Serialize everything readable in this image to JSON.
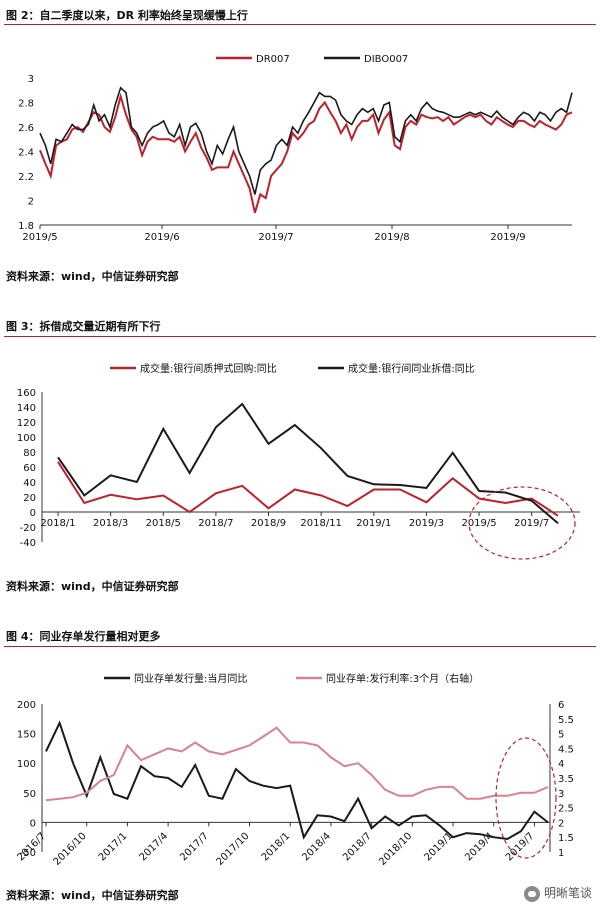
{
  "figures": [
    {
      "title": "图 2：自二季度以来，DR 利率始终呈现缓慢上行",
      "source": "资料来源：wind，中信证券研究部"
    },
    {
      "title": "图 3：拆借成交量近期有所下行",
      "source": "资料来源：wind，中信证券研究部"
    },
    {
      "title": "图 4：同业存单发行量相对更多",
      "source": "资料来源：wind，中信证券研究部"
    }
  ],
  "watermark": "明晰笔谈",
  "colors": {
    "red": "#c0202a",
    "black": "#1a1a1a",
    "pink": "#d9828f",
    "accent_rule": "#b3202a"
  },
  "chart_data": [
    {
      "type": "line",
      "title": "图 2：自二季度以来，DR 利率始终呈现缓慢上行",
      "x_ticks": [
        "2019/5",
        "2019/6",
        "2019/7",
        "2019/8",
        "2019/9"
      ],
      "ylim": [
        1.8,
        3.0
      ],
      "y_ticks": [
        "1.8",
        "2",
        "2.2",
        "2.4",
        "2.6",
        "2.8",
        "3"
      ],
      "legend_position": "top",
      "series": [
        {
          "name": "DR007",
          "color": "#c0202a",
          "values": [
            2.41,
            2.3,
            2.2,
            2.45,
            2.48,
            2.5,
            2.58,
            2.6,
            2.56,
            2.64,
            2.72,
            2.7,
            2.6,
            2.56,
            2.68,
            2.85,
            2.7,
            2.58,
            2.52,
            2.37,
            2.48,
            2.52,
            2.5,
            2.5,
            2.5,
            2.48,
            2.52,
            2.4,
            2.48,
            2.55,
            2.43,
            2.35,
            2.25,
            2.27,
            2.27,
            2.27,
            2.4,
            2.3,
            2.2,
            2.1,
            1.9,
            2.05,
            2.02,
            2.2,
            2.25,
            2.3,
            2.4,
            2.55,
            2.5,
            2.55,
            2.62,
            2.65,
            2.75,
            2.8,
            2.72,
            2.65,
            2.55,
            2.62,
            2.5,
            2.6,
            2.65,
            2.65,
            2.7,
            2.55,
            2.66,
            2.72,
            2.45,
            2.42,
            2.6,
            2.65,
            2.62,
            2.7,
            2.68,
            2.67,
            2.68,
            2.65,
            2.68,
            2.62,
            2.65,
            2.68,
            2.7,
            2.68,
            2.7,
            2.65,
            2.62,
            2.68,
            2.65,
            2.62,
            2.6,
            2.65,
            2.65,
            2.62,
            2.6,
            2.65,
            2.62,
            2.6,
            2.58,
            2.62,
            2.7,
            2.72
          ]
        },
        {
          "name": "DIBO007",
          "color": "#1a1a1a",
          "values": [
            2.55,
            2.45,
            2.3,
            2.5,
            2.48,
            2.55,
            2.62,
            2.58,
            2.58,
            2.62,
            2.78,
            2.65,
            2.7,
            2.6,
            2.78,
            2.92,
            2.88,
            2.6,
            2.55,
            2.45,
            2.55,
            2.6,
            2.62,
            2.65,
            2.55,
            2.52,
            2.62,
            2.45,
            2.6,
            2.63,
            2.55,
            2.4,
            2.3,
            2.45,
            2.38,
            2.5,
            2.6,
            2.4,
            2.3,
            2.2,
            2.05,
            2.25,
            2.3,
            2.33,
            2.45,
            2.5,
            2.45,
            2.6,
            2.55,
            2.65,
            2.72,
            2.8,
            2.88,
            2.85,
            2.85,
            2.82,
            2.7,
            2.65,
            2.62,
            2.7,
            2.75,
            2.72,
            2.75,
            2.65,
            2.78,
            2.8,
            2.52,
            2.48,
            2.65,
            2.7,
            2.65,
            2.75,
            2.8,
            2.75,
            2.73,
            2.72,
            2.7,
            2.68,
            2.68,
            2.7,
            2.72,
            2.7,
            2.72,
            2.7,
            2.68,
            2.73,
            2.68,
            2.65,
            2.62,
            2.68,
            2.72,
            2.7,
            2.65,
            2.72,
            2.7,
            2.65,
            2.72,
            2.75,
            2.72,
            2.88
          ]
        }
      ]
    },
    {
      "type": "line",
      "title": "图 3：拆借成交量近期有所下行",
      "x_ticks": [
        "2018/1",
        "2018/3",
        "2018/5",
        "2018/7",
        "2018/9",
        "2018/11",
        "2019/1",
        "2019/3",
        "2019/5",
        "2019/7"
      ],
      "x_months": [
        "2018/1",
        "2018/2",
        "2018/3",
        "2018/4",
        "2018/5",
        "2018/6",
        "2018/7",
        "2018/8",
        "2018/9",
        "2018/10",
        "2018/11",
        "2018/12",
        "2019/1",
        "2019/2",
        "2019/3",
        "2019/4",
        "2019/5",
        "2019/6",
        "2019/7",
        "2019/8"
      ],
      "ylim": [
        -40,
        160
      ],
      "y_ticks": [
        "-40",
        "-20",
        "0",
        "20",
        "40",
        "60",
        "80",
        "100",
        "120",
        "140",
        "160"
      ],
      "legend_position": "top",
      "annotation": "dashed red ellipse around latest points",
      "series": [
        {
          "name": "成交量:银行间质押式回购:同比",
          "color": "#c0202a",
          "values": [
            67,
            12,
            23,
            17,
            22,
            0,
            25,
            35,
            5,
            30,
            22,
            8,
            30,
            30,
            13,
            45,
            18,
            12,
            18,
            -5
          ]
        },
        {
          "name": "成交量:银行间同业拆借:同比",
          "color": "#1a1a1a",
          "values": [
            73,
            22,
            49,
            40,
            111,
            52,
            113,
            144,
            91,
            116,
            85,
            48,
            37,
            36,
            32,
            79,
            28,
            26,
            15,
            -15
          ]
        }
      ]
    },
    {
      "type": "line",
      "title": "图 4：同业存单发行量相对更多",
      "x_ticks": [
        "2016/7",
        "2016/10",
        "2017/1",
        "2017/4",
        "2017/7",
        "2017/10",
        "2018/1",
        "2018/4",
        "2018/7",
        "2018/10",
        "2019/1",
        "2019/4",
        "2019/7"
      ],
      "x_months": [
        "2016/7",
        "2016/8",
        "2016/9",
        "2016/10",
        "2016/11",
        "2016/12",
        "2017/1",
        "2017/2",
        "2017/3",
        "2017/4",
        "2017/5",
        "2017/6",
        "2017/7",
        "2017/8",
        "2017/9",
        "2017/10",
        "2017/11",
        "2017/12",
        "2018/1",
        "2018/2",
        "2018/3",
        "2018/4",
        "2018/5",
        "2018/6",
        "2018/7",
        "2018/8",
        "2018/9",
        "2018/10",
        "2018/11",
        "2018/12",
        "2019/1",
        "2019/2",
        "2019/3",
        "2019/4",
        "2019/5",
        "2019/6",
        "2019/7",
        "2019/8"
      ],
      "ylim": [
        -50,
        200
      ],
      "y_ticks": [
        "-50",
        "0",
        "50",
        "100",
        "150",
        "200"
      ],
      "y2lim": [
        1.0,
        6.0
      ],
      "y2_ticks": [
        "1",
        "1.5",
        "2",
        "2.5",
        "3",
        "3.5",
        "4",
        "4.5",
        "5",
        "5.5",
        "6"
      ],
      "legend_position": "top",
      "annotation": "dashed red ellipse around latest points",
      "series": [
        {
          "name": "同业存单发行量:当月同比",
          "color": "#1a1a1a",
          "axis": "left",
          "values": [
            120,
            168,
            100,
            45,
            110,
            48,
            40,
            95,
            78,
            75,
            60,
            97,
            45,
            40,
            90,
            70,
            62,
            58,
            62,
            -25,
            12,
            10,
            2,
            40,
            -10,
            10,
            -5,
            10,
            12,
            -5,
            -25,
            -18,
            -20,
            -25,
            -28,
            -15,
            18,
            0
          ]
        },
        {
          "name": "同业存单:发行利率:3个月（右轴）",
          "color": "#d9828f",
          "axis": "right",
          "values": [
            2.75,
            2.8,
            2.85,
            3.0,
            3.4,
            3.6,
            4.6,
            4.1,
            4.3,
            4.5,
            4.4,
            4.7,
            4.4,
            4.3,
            4.45,
            4.6,
            4.9,
            5.2,
            4.7,
            4.7,
            4.6,
            4.2,
            3.9,
            4.0,
            3.6,
            3.1,
            2.9,
            2.9,
            3.1,
            3.2,
            3.2,
            2.8,
            2.8,
            2.9,
            2.9,
            3.0,
            3.0,
            3.2
          ]
        }
      ]
    }
  ]
}
